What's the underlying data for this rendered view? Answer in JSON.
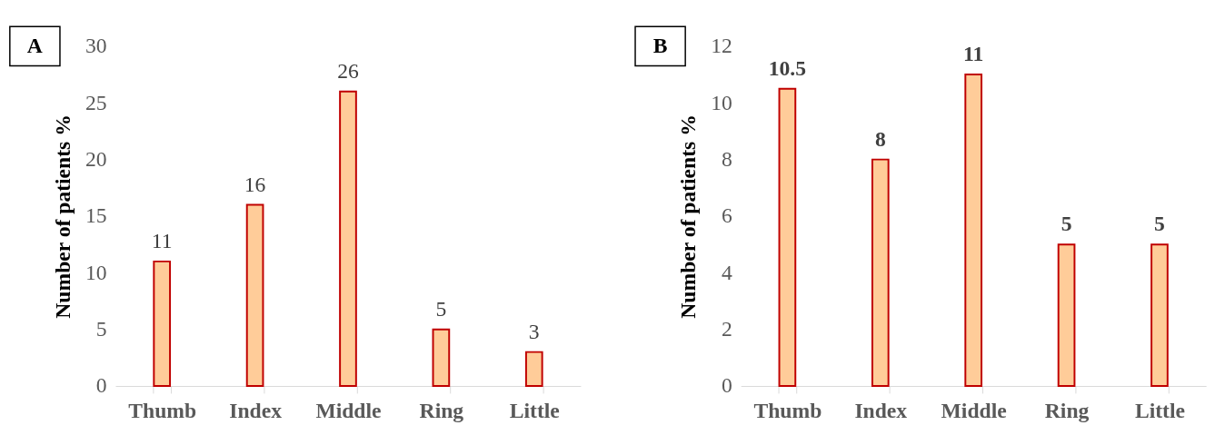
{
  "chart_data": [
    {
      "type": "bar",
      "title": "A",
      "ylabel": "Number of patients %",
      "categories": [
        "Thumb",
        "Index",
        "Middle",
        "Ring",
        "Little"
      ],
      "values": [
        11,
        16,
        26,
        5,
        3
      ],
      "color": "#ffcc99",
      "ylim": [
        0,
        30
      ],
      "yticks": [
        0,
        5,
        10,
        15,
        20,
        25,
        30
      ],
      "grid": false,
      "data_labels": true
    },
    {
      "type": "bar",
      "title": "B",
      "ylabel": "Number of patients %",
      "categories": [
        "Thumb",
        "Index",
        "Middle",
        "Ring",
        "Little"
      ],
      "values": [
        10.5,
        8,
        11,
        5,
        5
      ],
      "color": "#ffcc99",
      "ylim": [
        0,
        12
      ],
      "yticks": [
        0,
        2,
        4,
        6,
        8,
        10,
        12
      ],
      "grid": false,
      "data_labels": true
    }
  ]
}
